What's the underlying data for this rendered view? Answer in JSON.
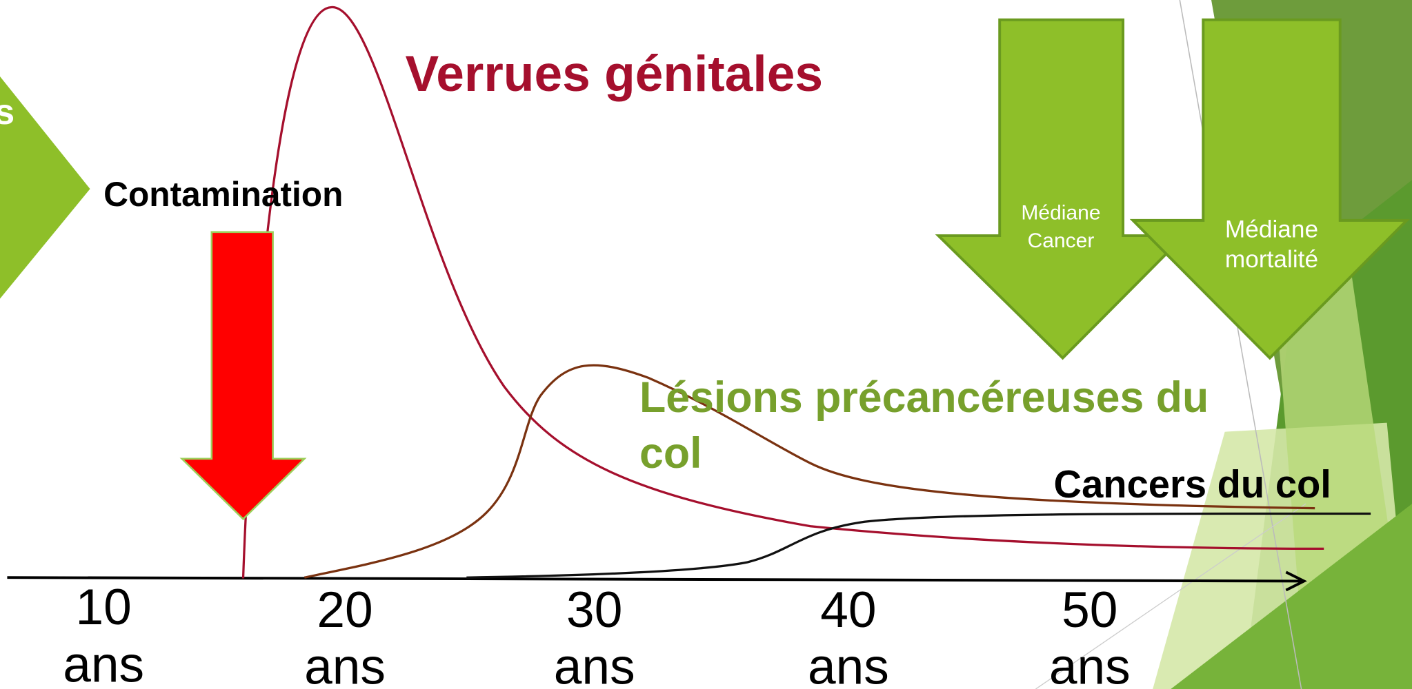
{
  "chevron_text": "s",
  "title": "Verrues génitales",
  "contamination": "Contamination",
  "lesions": [
    "Lésions précancéreuses du",
    "col"
  ],
  "cancers": "Cancers du col",
  "arrows": [
    {
      "lines": [
        "Médiane",
        "Cancer"
      ]
    },
    {
      "lines": [
        "Médiane",
        "mortalité"
      ]
    }
  ],
  "axis": {
    "ticks": [
      {
        "number": "10",
        "unit": "ans"
      },
      {
        "number": "20",
        "unit": "ans"
      },
      {
        "number": "30",
        "unit": "ans"
      },
      {
        "number": "40",
        "unit": "ans"
      },
      {
        "number": "50",
        "unit": "ans"
      }
    ]
  }
}
